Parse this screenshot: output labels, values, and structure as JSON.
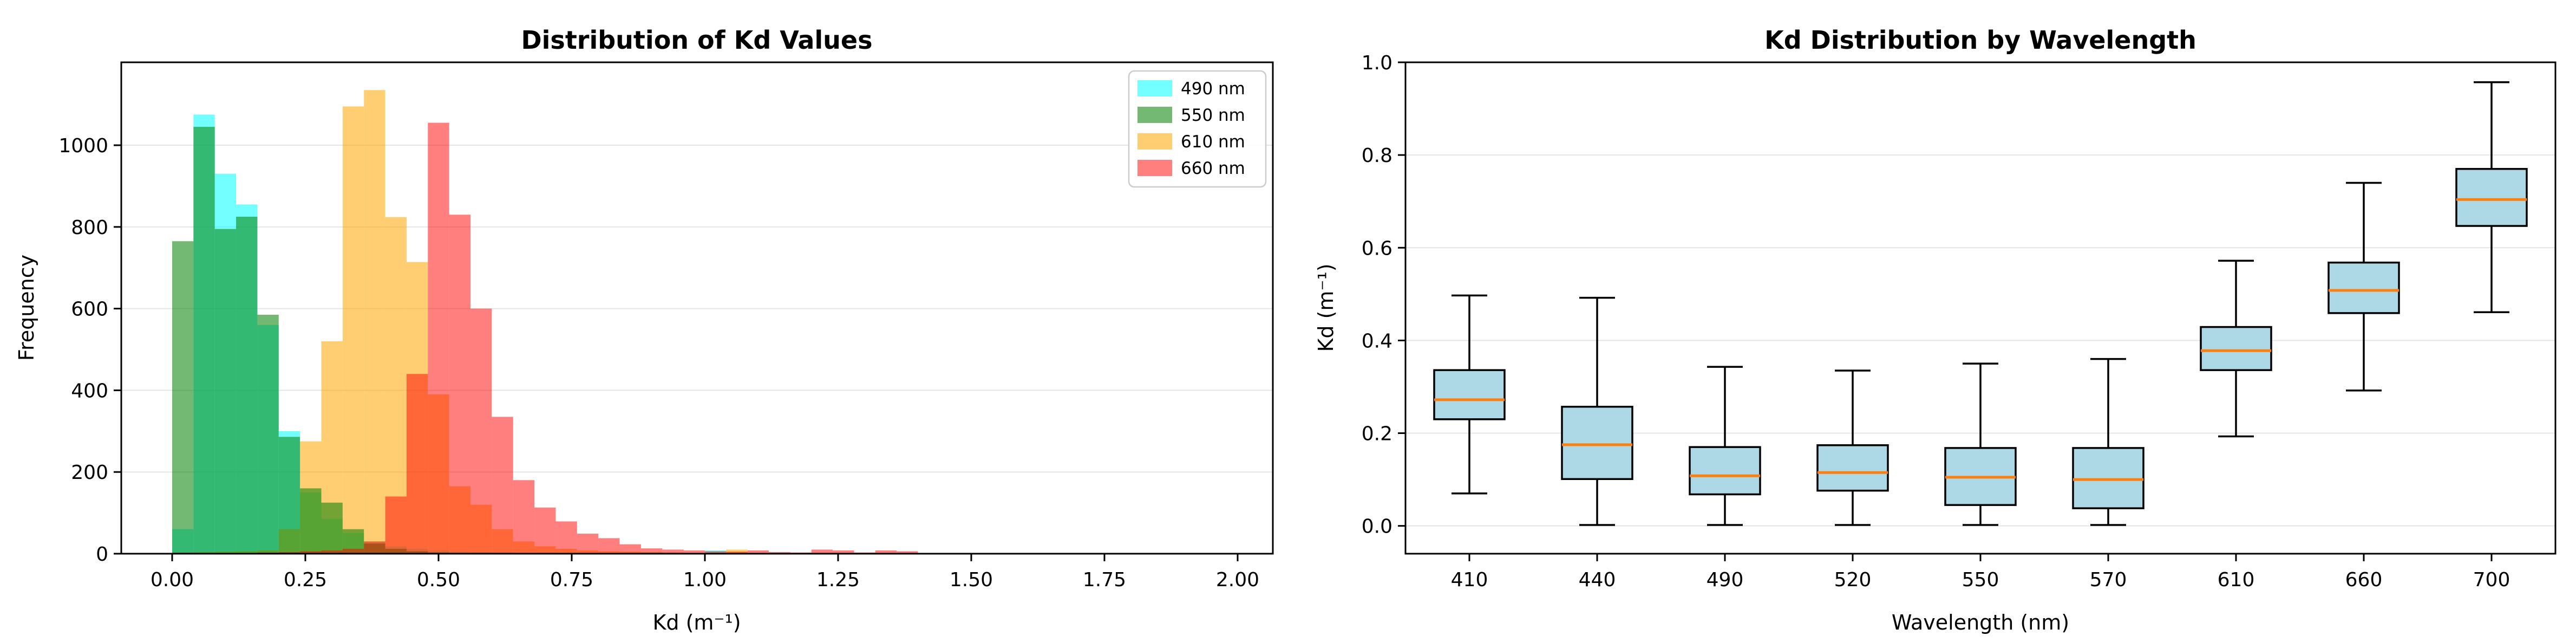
{
  "figure": {
    "background": "#ffffff",
    "grid_color": "#e5e5e5",
    "spine_color": "#000000"
  },
  "chart_data": [
    {
      "type": "bar",
      "subtype": "overlapping-histograms",
      "title": "Distribution of Kd Values",
      "xlabel": "Kd (m⁻¹)",
      "ylabel": "Frequency",
      "xlim": [
        -0.0955,
        2.0661
      ],
      "ylim": [
        0,
        1203
      ],
      "xticks": [
        0.0,
        0.25,
        0.5,
        0.75,
        1.0,
        1.25,
        1.5,
        1.75,
        2.0
      ],
      "xtick_labels": [
        "0.00",
        "0.25",
        "0.50",
        "0.75",
        "1.00",
        "1.25",
        "1.50",
        "1.75",
        "2.00"
      ],
      "yticks": [
        0,
        200,
        400,
        600,
        800,
        1000
      ],
      "ytick_labels": [
        "0",
        "200",
        "400",
        "600",
        "800",
        "1000"
      ],
      "grid": "horizontal",
      "bin_width": 0.04,
      "legend_position": "top-right",
      "series": [
        {
          "name": "490 nm",
          "color": "#00ffff",
          "alpha": 0.55,
          "z": 1,
          "bin_start": 0.0,
          "counts": [
            60,
            1075,
            930,
            855,
            560,
            300,
            150,
            85,
            50,
            30,
            18,
            12,
            8,
            5,
            4,
            3,
            2,
            2,
            1,
            1,
            1,
            1,
            1,
            1,
            1,
            8
          ]
        },
        {
          "name": "550 nm",
          "color": "#008000",
          "alpha": 0.55,
          "z": 3,
          "bin_start": 0.0,
          "counts": [
            765,
            1045,
            795,
            825,
            585,
            286,
            160,
            125,
            60,
            25,
            12,
            6,
            3,
            2,
            1,
            1
          ]
        },
        {
          "name": "610 nm",
          "color": "#ffa500",
          "alpha": 0.55,
          "z": 2,
          "bin_start": 0.0,
          "counts": [
            3,
            4,
            5,
            6,
            8,
            60,
            275,
            520,
            1095,
            1135,
            824,
            714,
            390,
            165,
            120,
            60,
            30,
            18,
            12,
            8,
            6,
            5,
            4,
            3,
            2,
            2,
            10
          ]
        },
        {
          "name": "660 nm",
          "color": "#ff0000",
          "alpha": 0.5,
          "z": 4,
          "bin_start": 0.0,
          "counts": [
            1,
            1,
            2,
            2,
            3,
            4,
            6,
            8,
            12,
            30,
            140,
            440,
            1055,
            830,
            600,
            335,
            180,
            113,
            79,
            49,
            38,
            23,
            13,
            10,
            8,
            6,
            5,
            8,
            4,
            3,
            10,
            8,
            3,
            8,
            6
          ]
        }
      ]
    },
    {
      "type": "boxplot",
      "title": "Kd Distribution by Wavelength",
      "xlabel": "Wavelength (nm)",
      "ylabel": "Kd (m⁻¹)",
      "ylim": [
        -0.06,
        1.0
      ],
      "yticks": [
        0.0,
        0.2,
        0.4,
        0.6,
        0.8,
        1.0
      ],
      "ytick_labels": [
        "0.0",
        "0.2",
        "0.4",
        "0.6",
        "0.8",
        "1.0"
      ],
      "grid": "horizontal",
      "box_fill": "#add8e6",
      "box_edge": "#000000",
      "median_color": "#ff7f0e",
      "categories": [
        "410",
        "440",
        "490",
        "520",
        "550",
        "570",
        "610",
        "660",
        "700"
      ],
      "boxes": [
        {
          "label": "410",
          "whislo": 0.07,
          "q1": 0.23,
          "med": 0.272,
          "q3": 0.336,
          "whishi": 0.497
        },
        {
          "label": "440",
          "whislo": 0.002,
          "q1": 0.101,
          "med": 0.175,
          "q3": 0.257,
          "whishi": 0.492
        },
        {
          "label": "490",
          "whislo": 0.002,
          "q1": 0.068,
          "med": 0.108,
          "q3": 0.17,
          "whishi": 0.343
        },
        {
          "label": "520",
          "whislo": 0.002,
          "q1": 0.076,
          "med": 0.115,
          "q3": 0.174,
          "whishi": 0.335
        },
        {
          "label": "550",
          "whislo": 0.002,
          "q1": 0.045,
          "med": 0.105,
          "q3": 0.168,
          "whishi": 0.35
        },
        {
          "label": "570",
          "whislo": 0.002,
          "q1": 0.038,
          "med": 0.1,
          "q3": 0.168,
          "whishi": 0.36
        },
        {
          "label": "610",
          "whislo": 0.193,
          "q1": 0.336,
          "med": 0.378,
          "q3": 0.429,
          "whishi": 0.572
        },
        {
          "label": "660",
          "whislo": 0.292,
          "q1": 0.459,
          "med": 0.508,
          "q3": 0.568,
          "whishi": 0.74
        },
        {
          "label": "700",
          "whislo": 0.461,
          "q1": 0.647,
          "med": 0.704,
          "q3": 0.77,
          "whishi": 0.957
        }
      ]
    }
  ]
}
